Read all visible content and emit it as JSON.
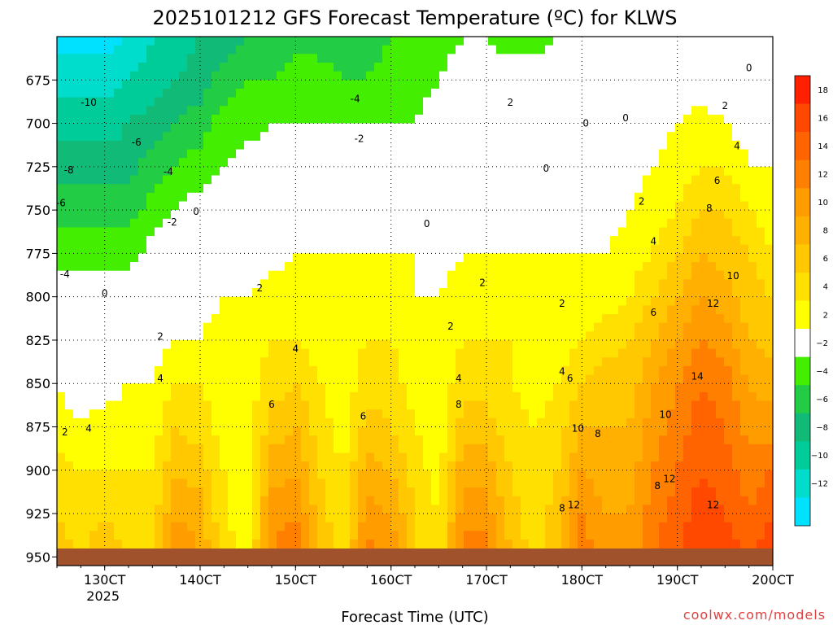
{
  "chart_data": {
    "type": "heatmap",
    "title": "2025101212 GFS Forecast Temperature (ºC) for KLWS",
    "xlabel": "Forecast Time (UTC)",
    "ylabel": "",
    "credit": "coolwx.com/models",
    "x_ticks": [
      {
        "label": "130CT",
        "sub": "2025",
        "hour": 12
      },
      {
        "label": "140CT",
        "sub": "",
        "hour": 36
      },
      {
        "label": "150CT",
        "sub": "",
        "hour": 60
      },
      {
        "label": "160CT",
        "sub": "",
        "hour": 84
      },
      {
        "label": "170CT",
        "sub": "",
        "hour": 108
      },
      {
        "label": "180CT",
        "sub": "",
        "hour": 132
      },
      {
        "label": "190CT",
        "sub": "",
        "hour": 156
      },
      {
        "label": "200CT",
        "sub": "",
        "hour": 180
      }
    ],
    "xlim_hours": [
      0,
      180
    ],
    "y_ticks": [
      675,
      700,
      725,
      750,
      775,
      800,
      825,
      850,
      875,
      900,
      925,
      950
    ],
    "ylim_hpa": [
      650,
      955
    ],
    "colorbar": {
      "labels": [
        "18",
        "16",
        "14",
        "12",
        "10",
        "8",
        "6",
        "4",
        "2",
        "−2",
        "−4",
        "−6",
        "−8",
        "−10",
        "−12"
      ],
      "colors": [
        "#ff2000",
        "#ff4800",
        "#ff6400",
        "#ff8000",
        "#ff9c00",
        "#ffb000",
        "#ffc800",
        "#ffe000",
        "#ffff00",
        "#ffffff",
        "#44ee00",
        "#22cc44",
        "#11bb77",
        "#00cc99",
        "#00ddcc",
        "#00e0ff"
      ]
    },
    "temperature_columns": {
      "hours": [
        0,
        6,
        12,
        18,
        24,
        30,
        36,
        42,
        48,
        54,
        60,
        66,
        72,
        78,
        84,
        90,
        96,
        102,
        108,
        114,
        120,
        126,
        132,
        138,
        144,
        150,
        156,
        162,
        168,
        174,
        180
      ],
      "levels_hpa": [
        650,
        675,
        700,
        725,
        750,
        775,
        800,
        825,
        850,
        875,
        900,
        925,
        950
      ],
      "temps_c": [
        [
          -13,
          -11,
          -9,
          -7,
          -5,
          -3,
          -1,
          1,
          2,
          3,
          5,
          6,
          7
        ],
        [
          -13,
          -11,
          -9,
          -7,
          -5,
          -3,
          -1,
          0,
          1,
          2,
          4,
          5,
          6
        ],
        [
          -13,
          -11,
          -9,
          -7,
          -5,
          -3,
          -1,
          0,
          1,
          3,
          4,
          6,
          7
        ],
        [
          -12,
          -10,
          -8,
          -7,
          -5,
          -3,
          -1,
          1,
          2,
          3,
          4,
          5,
          6
        ],
        [
          -10,
          -9,
          -7,
          -5,
          -3,
          -1,
          0,
          1,
          2,
          3,
          4,
          5,
          6
        ],
        [
          -9,
          -8,
          -6,
          -4,
          -2,
          0,
          1,
          2,
          4,
          6,
          8,
          10,
          12
        ],
        [
          -8,
          -7,
          -5,
          -3,
          -1,
          0,
          1,
          2,
          4,
          5,
          7,
          9,
          10
        ],
        [
          -7,
          -5,
          -3,
          -2,
          0,
          1,
          2,
          3,
          3,
          3,
          4,
          4,
          5
        ],
        [
          -6,
          -4,
          -3,
          -1,
          0,
          1,
          2,
          3,
          3,
          3,
          3,
          3,
          3
        ],
        [
          -5,
          -4,
          -2,
          -1,
          0,
          1,
          3,
          4,
          5,
          7,
          9,
          11,
          12
        ],
        [
          -5,
          -3,
          -2,
          0,
          1,
          2,
          3,
          4,
          6,
          8,
          10,
          12,
          14
        ],
        [
          -5,
          -3,
          -2,
          0,
          1,
          2,
          3,
          3,
          4,
          5,
          6,
          7,
          8
        ],
        [
          -5,
          -4,
          -2,
          0,
          1,
          2,
          3,
          3,
          3,
          3,
          4,
          4,
          5
        ],
        [
          -5,
          -4,
          -2,
          -1,
          1,
          2,
          3,
          4,
          5,
          7,
          9,
          11,
          13
        ],
        [
          -4,
          -3,
          -2,
          -1,
          1,
          2,
          3,
          4,
          5,
          6,
          8,
          10,
          12
        ],
        [
          -4,
          -3,
          -2,
          -1,
          1,
          2,
          2,
          3,
          3,
          4,
          5,
          6,
          6
        ],
        [
          -3,
          -2,
          -1,
          -1,
          0,
          1,
          2,
          2,
          3,
          3,
          3,
          4,
          4
        ],
        [
          -2,
          -1,
          0,
          0,
          1,
          2,
          3,
          4,
          5,
          7,
          9,
          11,
          13
        ],
        [
          -2,
          -1,
          1,
          1,
          2,
          2,
          3,
          4,
          5,
          7,
          9,
          11,
          14
        ],
        [
          -3,
          -1,
          0,
          1,
          1,
          2,
          3,
          4,
          4,
          5,
          6,
          7,
          8
        ],
        [
          -3,
          -1,
          0,
          1,
          1,
          2,
          2,
          3,
          3,
          4,
          4,
          5,
          5
        ],
        [
          -2,
          -1,
          0,
          1,
          1,
          2,
          2,
          3,
          4,
          5,
          6,
          7,
          8
        ],
        [
          -2,
          -1,
          0,
          1,
          2,
          2,
          3,
          4,
          6,
          8,
          10,
          12,
          13
        ],
        [
          -1,
          0,
          0,
          1,
          1,
          2,
          3,
          5,
          7,
          8,
          9,
          10,
          11
        ],
        [
          -1,
          0,
          1,
          1,
          2,
          3,
          4,
          6,
          7,
          8,
          9,
          10,
          11
        ],
        [
          -1,
          0,
          1,
          2,
          3,
          4,
          6,
          8,
          10,
          11,
          12,
          13,
          14
        ],
        [
          -1,
          0,
          2,
          3,
          4,
          6,
          8,
          10,
          12,
          13,
          14,
          15,
          16
        ],
        [
          -1,
          1,
          3,
          4,
          6,
          8,
          10,
          12,
          14,
          15,
          16,
          17,
          17
        ],
        [
          -1,
          0,
          2,
          4,
          6,
          7,
          9,
          11,
          13,
          14,
          15,
          16,
          17
        ],
        [
          -1,
          0,
          1,
          2,
          4,
          6,
          7,
          8,
          10,
          11,
          13,
          14,
          16
        ],
        [
          -2,
          -1,
          0,
          2,
          3,
          4,
          6,
          7,
          9,
          11,
          14,
          16,
          18
        ]
      ]
    },
    "contour_labels": [
      {
        "text": "-10",
        "hour": 8,
        "p": 688
      },
      {
        "text": "-8",
        "hour": 3,
        "p": 727
      },
      {
        "text": "-6",
        "hour": 1,
        "p": 746
      },
      {
        "text": "-6",
        "hour": 20,
        "p": 711
      },
      {
        "text": "-4",
        "hour": 2,
        "p": 787
      },
      {
        "text": "-4",
        "hour": 28,
        "p": 728
      },
      {
        "text": "-4",
        "hour": 75,
        "p": 686
      },
      {
        "text": "-2",
        "hour": 29,
        "p": 757
      },
      {
        "text": "-2",
        "hour": 76,
        "p": 709
      },
      {
        "text": "0",
        "hour": 12,
        "p": 798
      },
      {
        "text": "0",
        "hour": 35,
        "p": 751
      },
      {
        "text": "0",
        "hour": 93,
        "p": 758
      },
      {
        "text": "0",
        "hour": 133,
        "p": 700
      },
      {
        "text": "0",
        "hour": 143,
        "p": 697
      },
      {
        "text": "0",
        "hour": 123,
        "p": 726
      },
      {
        "text": "0",
        "hour": 174,
        "p": 668
      },
      {
        "text": "2",
        "hour": 2,
        "p": 878
      },
      {
        "text": "2",
        "hour": 26,
        "p": 823
      },
      {
        "text": "2",
        "hour": 51,
        "p": 795
      },
      {
        "text": "2",
        "hour": 99,
        "p": 817
      },
      {
        "text": "2",
        "hour": 107,
        "p": 792
      },
      {
        "text": "2",
        "hour": 114,
        "p": 688
      },
      {
        "text": "2",
        "hour": 127,
        "p": 804
      },
      {
        "text": "2",
        "hour": 147,
        "p": 745
      },
      {
        "text": "2",
        "hour": 168,
        "p": 690
      },
      {
        "text": "4",
        "hour": 8,
        "p": 876
      },
      {
        "text": "4",
        "hour": 26,
        "p": 847
      },
      {
        "text": "4",
        "hour": 60,
        "p": 830
      },
      {
        "text": "4",
        "hour": 101,
        "p": 847
      },
      {
        "text": "4",
        "hour": 127,
        "p": 843
      },
      {
        "text": "4",
        "hour": 150,
        "p": 768
      },
      {
        "text": "4",
        "hour": 171,
        "p": 713
      },
      {
        "text": "6",
        "hour": 54,
        "p": 862
      },
      {
        "text": "6",
        "hour": 77,
        "p": 869
      },
      {
        "text": "6",
        "hour": 129,
        "p": 847
      },
      {
        "text": "6",
        "hour": 150,
        "p": 809
      },
      {
        "text": "6",
        "hour": 166,
        "p": 733
      },
      {
        "text": "8",
        "hour": 101,
        "p": 862
      },
      {
        "text": "8",
        "hour": 127,
        "p": 922
      },
      {
        "text": "8",
        "hour": 136,
        "p": 879
      },
      {
        "text": "8",
        "hour": 151,
        "p": 909
      },
      {
        "text": "8",
        "hour": 164,
        "p": 749
      },
      {
        "text": "10",
        "hour": 131,
        "p": 876
      },
      {
        "text": "10",
        "hour": 153,
        "p": 868
      },
      {
        "text": "10",
        "hour": 170,
        "p": 788
      },
      {
        "text": "12",
        "hour": 130,
        "p": 920
      },
      {
        "text": "12",
        "hour": 154,
        "p": 905
      },
      {
        "text": "12",
        "hour": 165,
        "p": 804
      },
      {
        "text": "12",
        "hour": 165,
        "p": 920
      },
      {
        "text": "14",
        "hour": 161,
        "p": 846
      }
    ]
  }
}
